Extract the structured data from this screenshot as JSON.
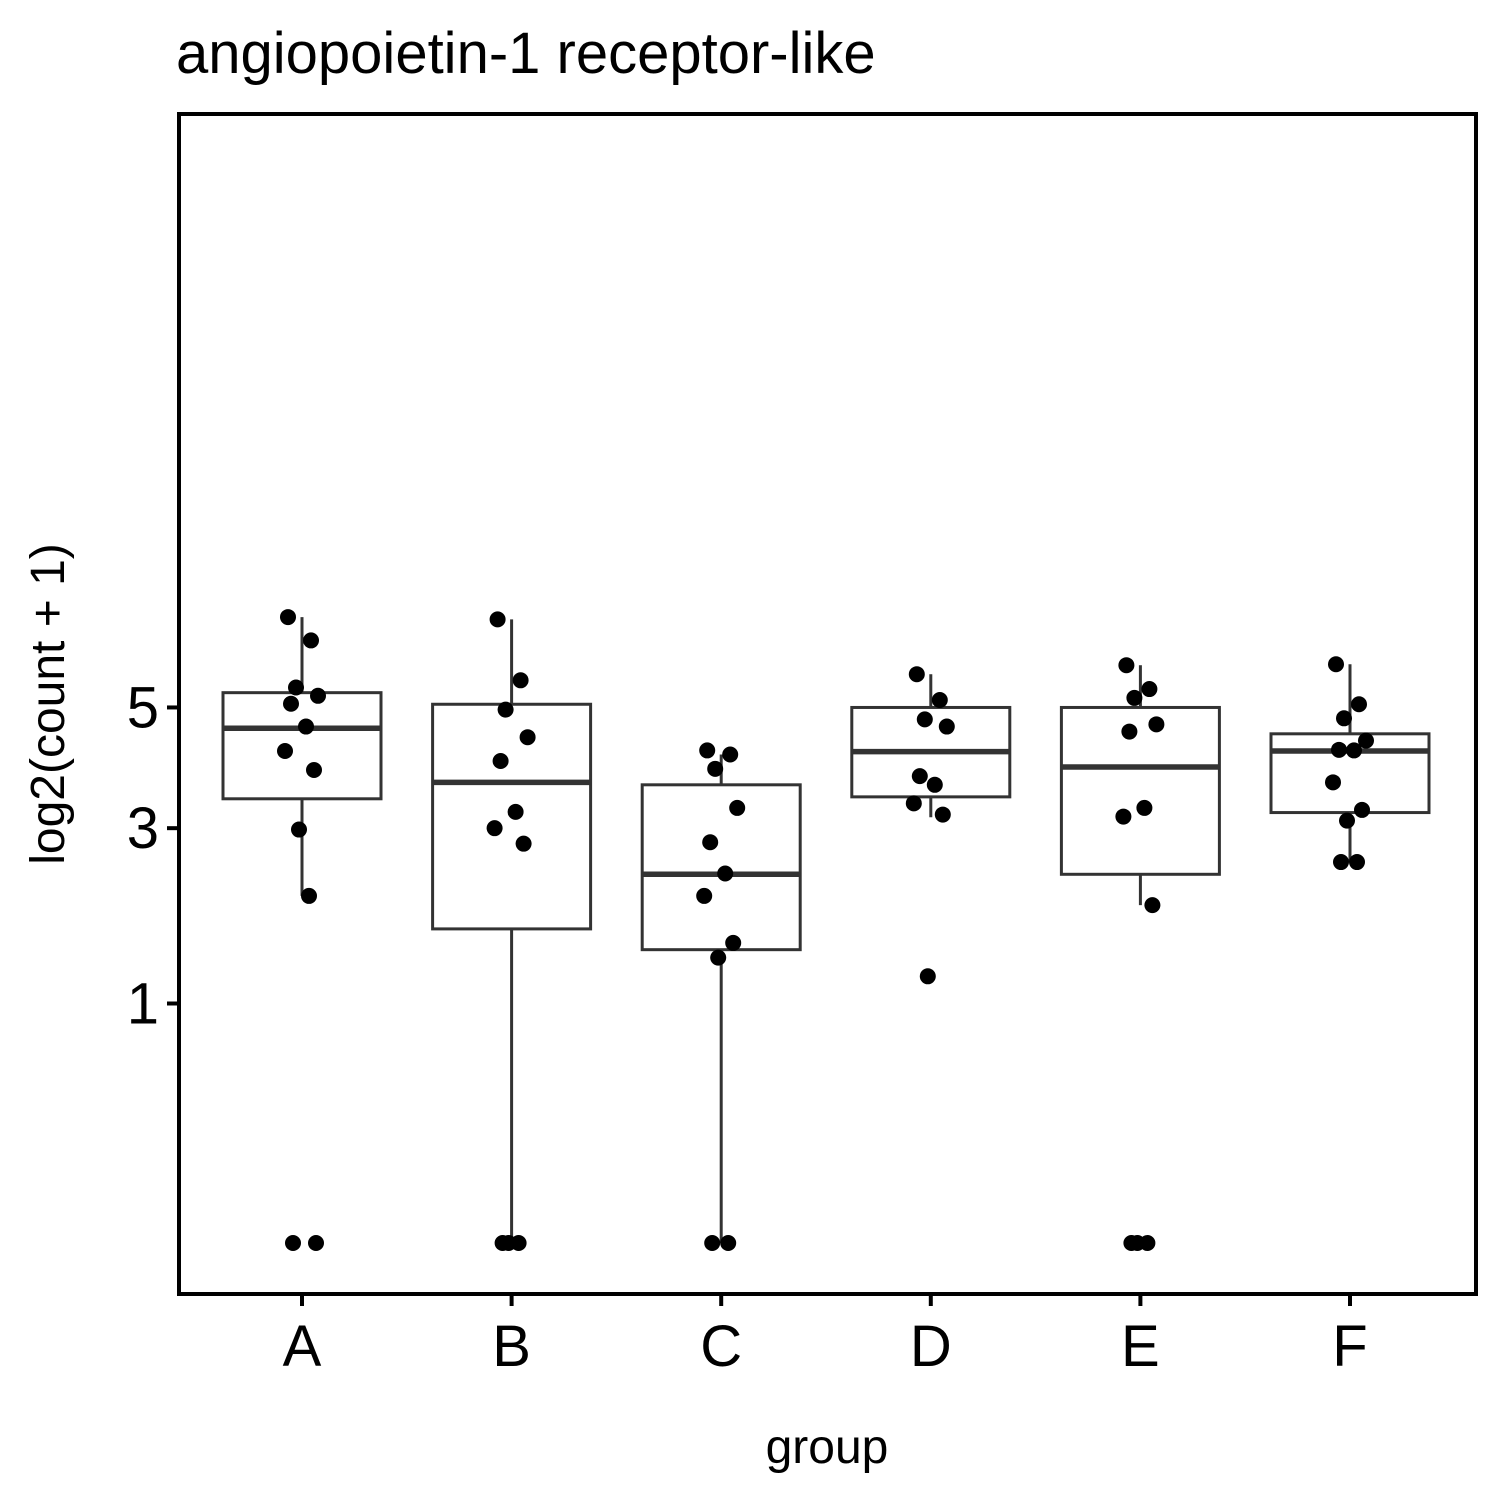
{
  "chart_data": {
    "type": "box",
    "title": "angiopoietin-1 receptor-like",
    "xlabel": "group",
    "ylabel": "log2(count + 1)",
    "y_scale": "sqrt",
    "ylim": [
      0,
      6.85
    ],
    "y_ticks": [
      1,
      3,
      5
    ],
    "grid": false,
    "legend": "none",
    "categories": [
      "A",
      "B",
      "C",
      "D",
      "E",
      "F"
    ],
    "boxes": [
      {
        "group": "A",
        "whisker_low": 2.1,
        "q1": 3.44,
        "median": 4.62,
        "q3": 5.28,
        "whisker_high": 6.83
      },
      {
        "group": "B",
        "whisker_low": 0,
        "q1": 1.72,
        "median": 3.7,
        "q3": 5.06,
        "whisker_high": 6.78
      },
      {
        "group": "C",
        "whisker_low": 0,
        "q1": 1.5,
        "median": 2.37,
        "q3": 3.66,
        "whisker_high": 4.16
      },
      {
        "group": "D",
        "whisker_low": 3.16,
        "q1": 3.47,
        "median": 4.21,
        "q3": 5.0,
        "whisker_high": 5.64
      },
      {
        "group": "E",
        "whisker_low": 1.99,
        "q1": 2.37,
        "median": 3.95,
        "q3": 5.0,
        "whisker_high": 5.82
      },
      {
        "group": "F",
        "whisker_low": 2.53,
        "q1": 3.23,
        "median": 4.22,
        "q3": 4.52,
        "whisker_high": 5.84
      }
    ],
    "points": [
      {
        "group": "A",
        "values": [
          6.83,
          6.33,
          5.38,
          5.22,
          5.07,
          4.65,
          4.22,
          3.9,
          2.98,
          2.1,
          0,
          0
        ]
      },
      {
        "group": "B",
        "values": [
          6.78,
          5.52,
          4.96,
          4.46,
          4.05,
          3.24,
          3.0,
          2.78,
          0,
          0,
          0
        ]
      },
      {
        "group": "C",
        "values": [
          4.23,
          4.16,
          3.92,
          3.3,
          2.8,
          2.38,
          2.1,
          1.57,
          1.42,
          0,
          0
        ]
      },
      {
        "group": "D",
        "values": [
          5.64,
          5.14,
          4.78,
          4.65,
          3.8,
          3.66,
          3.37,
          3.2,
          1.24
        ]
      },
      {
        "group": "E",
        "values": [
          5.82,
          5.35,
          5.18,
          4.69,
          4.56,
          3.3,
          3.17,
          1.99,
          0,
          0,
          0
        ]
      },
      {
        "group": "F",
        "values": [
          5.84,
          5.06,
          4.8,
          4.4,
          4.24,
          4.23,
          3.7,
          3.27,
          3.11,
          2.53,
          2.53
        ]
      }
    ]
  }
}
